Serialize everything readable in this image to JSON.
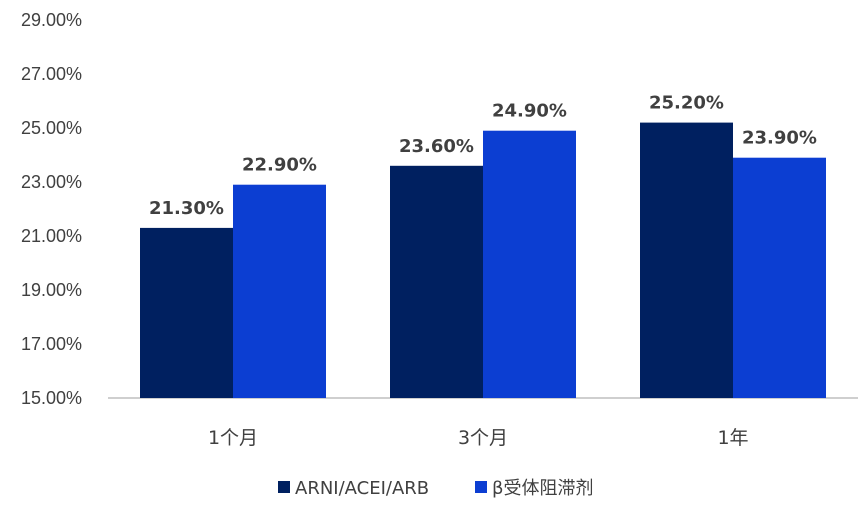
{
  "chart_data": {
    "type": "bar",
    "title": "",
    "xlabel": "",
    "ylabel": "",
    "categories": [
      "1个月",
      "3个月",
      "1年"
    ],
    "series": [
      {
        "name": "ARNI/ACEI/ARB",
        "values": [
          21.3,
          23.6,
          25.2
        ],
        "labels": [
          "21.30%",
          "23.60%",
          "25.20%"
        ],
        "color": "#002060"
      },
      {
        "name": "β受体阻滞剂",
        "values": [
          22.9,
          24.9,
          23.9
        ],
        "labels": [
          "22.90%",
          "24.90%",
          "23.90%"
        ],
        "color": "#0C3ED2"
      }
    ],
    "ylim": [
      15,
      29
    ],
    "yticks": [
      15,
      17,
      19,
      21,
      23,
      25,
      27,
      29
    ],
    "ytick_labels": [
      "15.00%",
      "17.00%",
      "19.00%",
      "21.00%",
      "23.00%",
      "25.00%",
      "27.00%",
      "29.00%"
    ],
    "grid": false,
    "legend_position": "bottom",
    "axis_color": "#BFBFBF",
    "text_color": "#404040"
  }
}
